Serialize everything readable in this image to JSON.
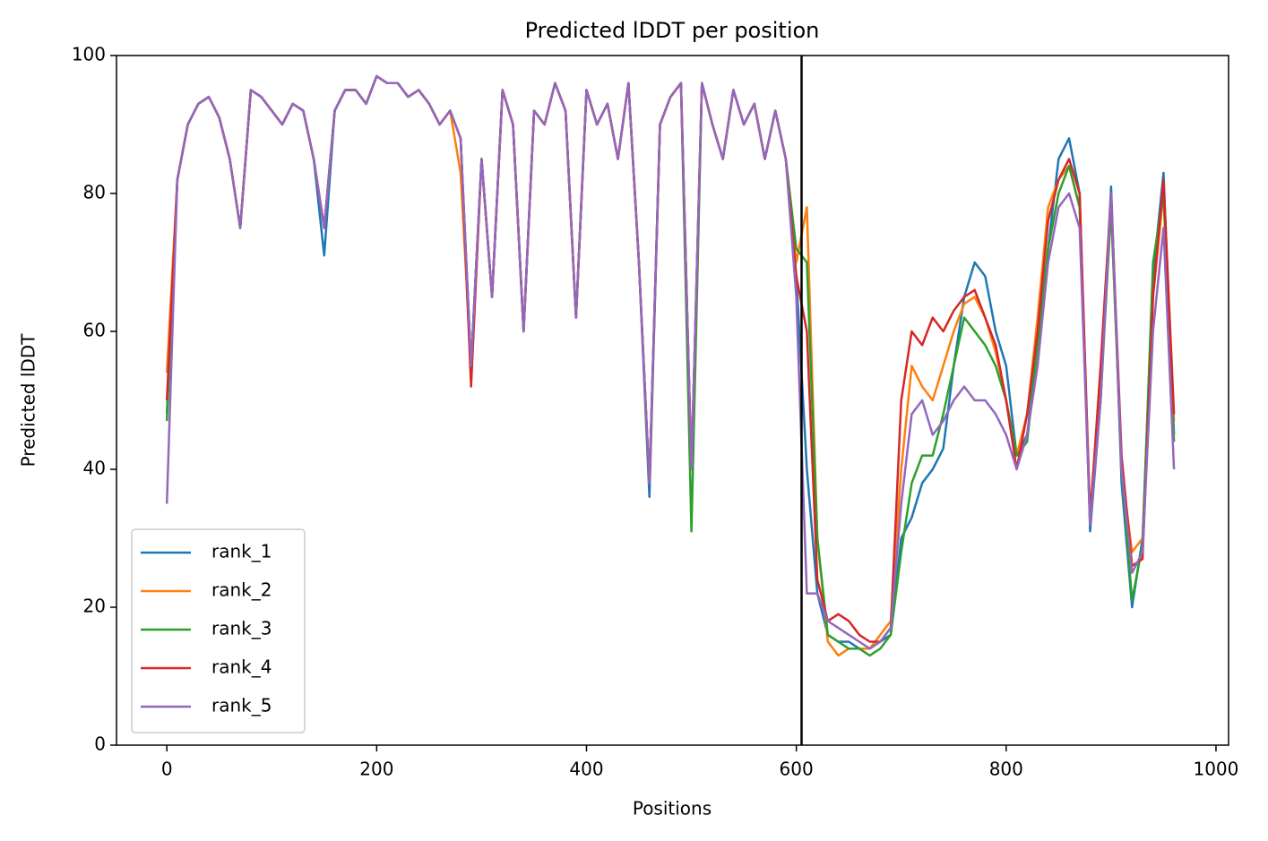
{
  "chart_data": {
    "type": "line",
    "title": "Predicted lDDT per position",
    "xlabel": "Positions",
    "ylabel": "Predicted lDDT",
    "x": [
      0,
      10,
      20,
      30,
      40,
      50,
      60,
      70,
      80,
      90,
      100,
      110,
      120,
      130,
      140,
      150,
      160,
      170,
      180,
      190,
      200,
      210,
      220,
      230,
      240,
      250,
      260,
      270,
      280,
      290,
      300,
      310,
      320,
      330,
      340,
      350,
      360,
      370,
      380,
      390,
      400,
      410,
      420,
      430,
      440,
      450,
      460,
      470,
      480,
      490,
      500,
      510,
      520,
      530,
      540,
      550,
      560,
      570,
      580,
      590,
      600,
      610,
      620,
      630,
      640,
      650,
      660,
      670,
      680,
      690,
      700,
      710,
      720,
      730,
      740,
      750,
      760,
      770,
      780,
      790,
      800,
      810,
      820,
      830,
      840,
      850,
      860,
      870,
      880,
      890,
      900,
      910,
      920,
      930,
      940,
      950,
      960
    ],
    "series": [
      {
        "name": "rank_1",
        "color": "#1f77b4",
        "values": [
          48,
          82,
          90,
          93,
          94,
          91,
          85,
          75,
          95,
          94,
          92,
          90,
          93,
          92,
          85,
          71,
          92,
          95,
          95,
          93,
          97,
          96,
          96,
          94,
          95,
          93,
          90,
          92,
          88,
          55,
          85,
          65,
          95,
          90,
          60,
          92,
          90,
          96,
          92,
          62,
          95,
          90,
          93,
          85,
          96,
          70,
          36,
          90,
          94,
          96,
          40,
          96,
          90,
          85,
          95,
          90,
          93,
          85,
          92,
          85,
          68,
          40,
          22,
          16,
          15,
          15,
          14,
          14,
          15,
          16,
          30,
          33,
          38,
          40,
          43,
          55,
          65,
          70,
          68,
          60,
          55,
          42,
          45,
          58,
          72,
          85,
          88,
          80,
          31,
          50,
          81,
          38,
          20,
          30,
          68,
          83,
          45
        ]
      },
      {
        "name": "rank_2",
        "color": "#ff7f0e",
        "values": [
          54,
          82,
          90,
          93,
          94,
          91,
          85,
          75,
          95,
          94,
          92,
          90,
          93,
          92,
          85,
          75,
          92,
          95,
          95,
          93,
          97,
          96,
          96,
          94,
          95,
          93,
          90,
          92,
          83,
          55,
          85,
          65,
          95,
          90,
          60,
          92,
          90,
          96,
          92,
          62,
          95,
          90,
          93,
          85,
          96,
          70,
          38,
          90,
          94,
          96,
          40,
          96,
          90,
          85,
          95,
          90,
          93,
          85,
          92,
          85,
          70,
          78,
          30,
          15,
          13,
          14,
          14,
          14,
          16,
          18,
          40,
          55,
          52,
          50,
          55,
          60,
          64,
          65,
          62,
          57,
          50,
          42,
          48,
          62,
          78,
          82,
          84,
          78,
          32,
          52,
          78,
          40,
          28,
          30,
          65,
          80,
          47
        ]
      },
      {
        "name": "rank_3",
        "color": "#2ca02c",
        "values": [
          47,
          82,
          90,
          93,
          94,
          91,
          85,
          75,
          95,
          94,
          92,
          90,
          93,
          92,
          85,
          75,
          92,
          95,
          95,
          93,
          97,
          96,
          96,
          94,
          95,
          93,
          90,
          92,
          88,
          55,
          85,
          65,
          95,
          90,
          60,
          92,
          90,
          96,
          92,
          62,
          95,
          90,
          93,
          85,
          96,
          70,
          38,
          90,
          94,
          96,
          31,
          96,
          90,
          85,
          95,
          90,
          93,
          85,
          92,
          85,
          72,
          70,
          30,
          16,
          15,
          14,
          14,
          13,
          14,
          16,
          28,
          38,
          42,
          42,
          48,
          55,
          62,
          60,
          58,
          55,
          50,
          42,
          44,
          58,
          72,
          80,
          84,
          78,
          33,
          50,
          78,
          40,
          21,
          29,
          70,
          80,
          44
        ]
      },
      {
        "name": "rank_4",
        "color": "#d62728",
        "values": [
          50,
          82,
          90,
          93,
          94,
          91,
          85,
          75,
          95,
          94,
          92,
          90,
          93,
          92,
          85,
          75,
          92,
          95,
          95,
          93,
          97,
          96,
          96,
          94,
          95,
          93,
          90,
          92,
          88,
          52,
          85,
          65,
          95,
          90,
          60,
          92,
          90,
          96,
          92,
          62,
          95,
          90,
          93,
          85,
          96,
          70,
          38,
          90,
          94,
          96,
          40,
          96,
          90,
          85,
          95,
          90,
          93,
          85,
          92,
          85,
          68,
          60,
          24,
          18,
          19,
          18,
          16,
          15,
          15,
          17,
          50,
          60,
          58,
          62,
          60,
          63,
          65,
          66,
          62,
          58,
          50,
          40,
          48,
          60,
          76,
          82,
          85,
          80,
          33,
          55,
          80,
          42,
          26,
          27,
          65,
          82,
          48
        ]
      },
      {
        "name": "rank_5",
        "color": "#9467bd",
        "values": [
          35,
          82,
          90,
          93,
          94,
          91,
          85,
          75,
          95,
          94,
          92,
          90,
          93,
          92,
          85,
          75,
          92,
          95,
          95,
          93,
          97,
          96,
          96,
          94,
          95,
          93,
          90,
          92,
          88,
          55,
          85,
          65,
          95,
          90,
          60,
          92,
          90,
          96,
          92,
          62,
          95,
          90,
          93,
          85,
          96,
          70,
          38,
          90,
          94,
          96,
          40,
          96,
          90,
          85,
          95,
          90,
          93,
          85,
          92,
          85,
          65,
          22,
          22,
          18,
          17,
          16,
          15,
          14,
          15,
          17,
          35,
          48,
          50,
          45,
          47,
          50,
          52,
          50,
          50,
          48,
          45,
          40,
          45,
          55,
          70,
          78,
          80,
          75,
          32,
          50,
          80,
          40,
          25,
          28,
          60,
          75,
          40
        ]
      }
    ],
    "vline": 605,
    "vline_color": "#000000",
    "xlim": [
      -48,
      1012
    ],
    "xticks": [
      0,
      200,
      400,
      600,
      800,
      1000
    ],
    "ylim": [
      0,
      100
    ],
    "yticks": [
      0,
      20,
      40,
      60,
      80,
      100
    ],
    "grid": false,
    "legend": "lower left"
  }
}
